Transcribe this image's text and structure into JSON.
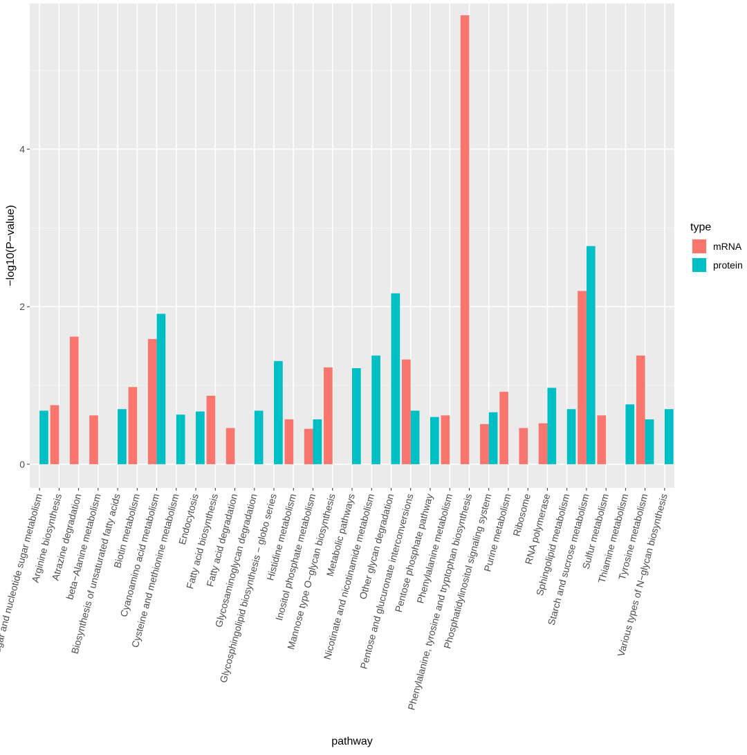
{
  "chart_data": {
    "type": "bar",
    "xlabel": "pathway",
    "ylabel": "−log10(P−value)",
    "ylim": [
      -0.3,
      5.85
    ],
    "yticks": [
      0,
      2,
      4
    ],
    "grid": true,
    "legend": {
      "title": "type",
      "position": "right",
      "entries": [
        {
          "name": "mRNA",
          "color": "#F8766D"
        },
        {
          "name": "protein",
          "color": "#00BFC4"
        }
      ]
    },
    "categories": [
      "Amino sugar and nucleotide sugar metabolism",
      "Arginine biosynthesis",
      "Atrazine degradation",
      "beta−Alanine metabolism",
      "Biosynthesis of unsaturated fatty acids",
      "Biotin metabolism",
      "Cyanoamino acid metabolism",
      "Cysteine and methionine metabolism",
      "Endocytosis",
      "Fatty acid biosynthesis",
      "Fatty acid degradation",
      "Glycosaminoglycan degradation",
      "Glycosphingolipid biosynthesis − globo series",
      "Histidine metabolism",
      "Inositol phosphate metabolism",
      "Mannose type O−glycan biosynthesis",
      "Metabolic pathways",
      "Nicotinate and nicotinamide metabolism",
      "Other glycan degradation",
      "Pentose and glucuronate interconversions",
      "Pentose phosphate pathway",
      "Phenylalanine metabolism",
      "Phenylalanine, tyrosine and tryptophan biosynthesis",
      "Phosphatidylinositol signaling system",
      "Purine metabolism",
      "Ribosome",
      "RNA polymerase",
      "Sphingolipid metabolism",
      "Starch and sucrose metabolism",
      "Sulfur metabolism",
      "Thiamine metabolism",
      "Tyrosine metabolism",
      "Various types of N−glycan biosynthesis"
    ],
    "series": [
      {
        "name": "mRNA",
        "values": [
          null,
          0.75,
          1.62,
          0.62,
          null,
          0.98,
          1.59,
          null,
          null,
          0.87,
          0.46,
          null,
          null,
          0.57,
          0.45,
          1.23,
          null,
          null,
          null,
          1.33,
          null,
          0.62,
          5.7,
          0.51,
          0.92,
          0.46,
          0.52,
          null,
          2.2,
          0.62,
          null,
          1.38,
          null
        ]
      },
      {
        "name": "protein",
        "values": [
          0.68,
          null,
          null,
          null,
          0.7,
          null,
          1.91,
          0.63,
          0.67,
          null,
          null,
          0.68,
          1.31,
          null,
          0.57,
          null,
          1.22,
          1.38,
          2.17,
          0.68,
          0.6,
          null,
          null,
          0.66,
          null,
          null,
          0.97,
          0.7,
          2.77,
          null,
          0.76,
          0.57,
          0.7
        ]
      }
    ]
  }
}
